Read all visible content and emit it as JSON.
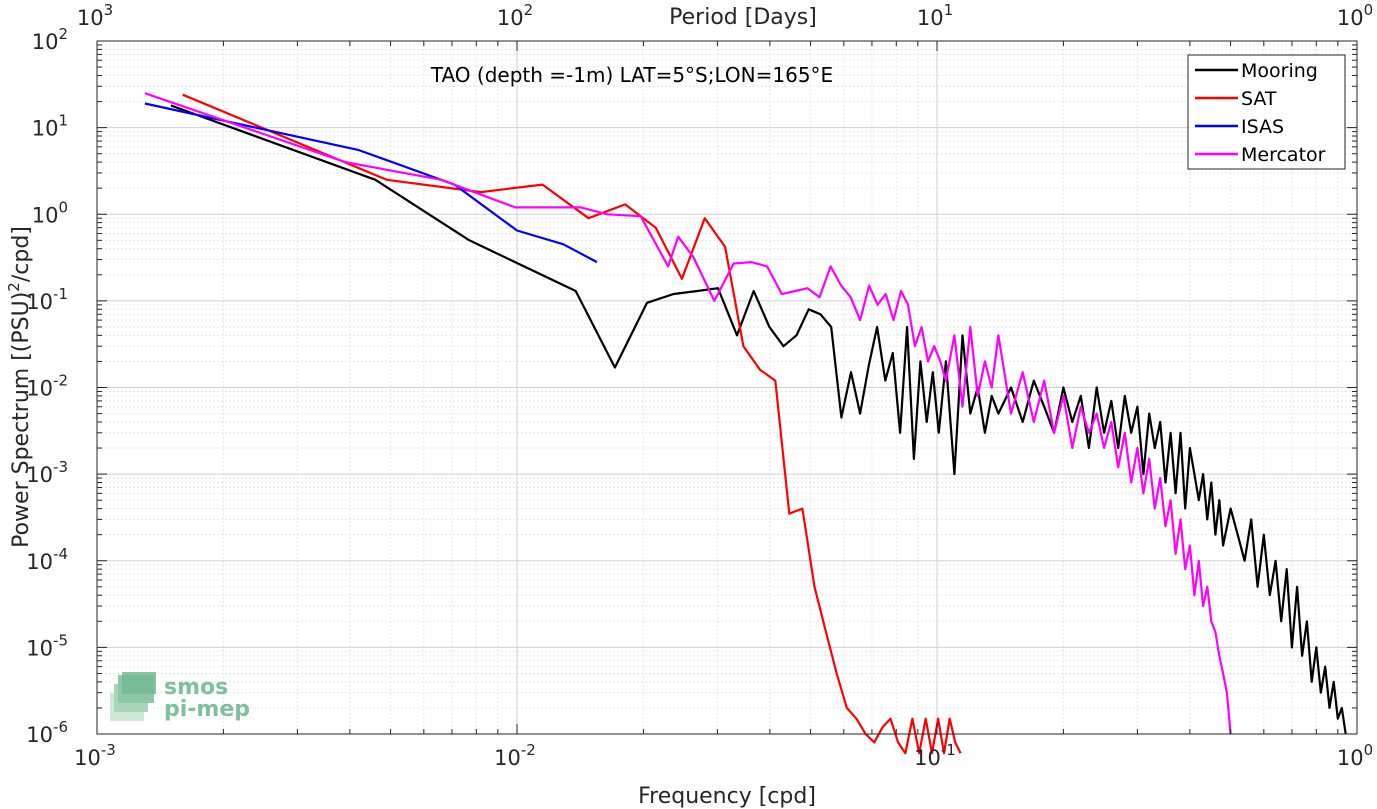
{
  "chart_data": {
    "type": "line",
    "title": "TAO (depth =-1m) LAT=5°S;LON=165°E",
    "xlabel": "Frequency [cpd]",
    "ylabel": "Power Spectrum [(PSU)",
    "ylabel_sup": "2",
    "ylabel_tail": "/cpd]",
    "top_xlabel": "Period [Days]",
    "xscale": "log",
    "yscale": "log",
    "xlim": [
      0.001,
      1
    ],
    "ylim": [
      1e-06,
      100
    ],
    "grid": true,
    "legend_position": "top-right",
    "x_ticks": [
      {
        "value": 0.001,
        "base": "10",
        "exp": "-3"
      },
      {
        "value": 0.01,
        "base": "10",
        "exp": "-2"
      },
      {
        "value": 0.1,
        "base": "10",
        "exp": "-1"
      },
      {
        "value": 1,
        "base": "10",
        "exp": "0"
      }
    ],
    "y_ticks": [
      {
        "value": 1e-06,
        "base": "10",
        "exp": "-6"
      },
      {
        "value": 1e-05,
        "base": "10",
        "exp": "-5"
      },
      {
        "value": 0.0001,
        "base": "10",
        "exp": "-4"
      },
      {
        "value": 0.001,
        "base": "10",
        "exp": "-3"
      },
      {
        "value": 0.01,
        "base": "10",
        "exp": "-2"
      },
      {
        "value": 0.1,
        "base": "10",
        "exp": "-1"
      },
      {
        "value": 1,
        "base": "10",
        "exp": "0"
      },
      {
        "value": 10,
        "base": "10",
        "exp": "1"
      },
      {
        "value": 100,
        "base": "10",
        "exp": "2"
      }
    ],
    "top_ticks": [
      {
        "value": 0.001,
        "base": "10",
        "exp": "3"
      },
      {
        "value": 0.01,
        "base": "10",
        "exp": "2"
      },
      {
        "value": 0.1,
        "base": "10",
        "exp": "1"
      },
      {
        "value": 1,
        "base": "10",
        "exp": "0"
      }
    ],
    "series": [
      {
        "name": "Mooring",
        "color": "#000000",
        "x": [
          0.0015,
          0.0046,
          0.0077,
          0.0138,
          0.0171,
          0.0204,
          0.0236,
          0.0269,
          0.0301,
          0.0334,
          0.0366,
          0.0399,
          0.0431,
          0.0463,
          0.0495,
          0.0528,
          0.056,
          0.0592,
          0.0624,
          0.0656,
          0.0688,
          0.072,
          0.0753,
          0.0785,
          0.0817,
          0.0849,
          0.0881,
          0.0913,
          0.0945,
          0.0977,
          0.101,
          0.105,
          0.11,
          0.115,
          0.12,
          0.125,
          0.13,
          0.135,
          0.14,
          0.15,
          0.16,
          0.17,
          0.18,
          0.19,
          0.2,
          0.21,
          0.22,
          0.23,
          0.24,
          0.25,
          0.26,
          0.27,
          0.28,
          0.29,
          0.3,
          0.31,
          0.32,
          0.33,
          0.34,
          0.35,
          0.36,
          0.37,
          0.38,
          0.39,
          0.4,
          0.41,
          0.42,
          0.43,
          0.44,
          0.45,
          0.46,
          0.47,
          0.48,
          0.5,
          0.52,
          0.54,
          0.56,
          0.58,
          0.6,
          0.62,
          0.64,
          0.66,
          0.68,
          0.7,
          0.72,
          0.74,
          0.76,
          0.78,
          0.8,
          0.82,
          0.84,
          0.86,
          0.88,
          0.9,
          0.92,
          0.94
        ],
        "values": [
          18,
          2.5,
          0.5,
          0.13,
          0.017,
          0.095,
          0.12,
          0.13,
          0.14,
          0.04,
          0.13,
          0.05,
          0.03,
          0.04,
          0.08,
          0.07,
          0.05,
          0.0045,
          0.015,
          0.005,
          0.018,
          0.05,
          0.012,
          0.025,
          0.003,
          0.05,
          0.0015,
          0.02,
          0.004,
          0.015,
          0.003,
          0.02,
          0.001,
          0.04,
          0.005,
          0.01,
          0.003,
          0.008,
          0.005,
          0.01,
          0.004,
          0.012,
          0.006,
          0.003,
          0.01,
          0.004,
          0.008,
          0.002,
          0.01,
          0.003,
          0.007,
          0.002,
          0.008,
          0.003,
          0.006,
          0.001,
          0.005,
          0.002,
          0.004,
          0.0008,
          0.003,
          0.0006,
          0.003,
          0.0004,
          0.002,
          0.001,
          0.0005,
          0.001,
          0.0003,
          0.0008,
          0.0002,
          0.0005,
          0.00015,
          0.0004,
          0.0002,
          0.0001,
          0.0003,
          5e-05,
          0.0002,
          4e-05,
          0.0001,
          2e-05,
          8e-05,
          1e-05,
          5e-05,
          8e-06,
          2e-05,
          4e-06,
          1e-05,
          3e-06,
          6e-06,
          2e-06,
          4e-06,
          1.5e-06,
          2e-06,
          1e-06
        ]
      },
      {
        "name": "SAT",
        "color": "#ff0000",
        "x": [
          0.0016,
          0.0049,
          0.0082,
          0.0115,
          0.0148,
          0.0181,
          0.0214,
          0.0247,
          0.028,
          0.0313,
          0.0346,
          0.0379,
          0.0412,
          0.0445,
          0.0478,
          0.0511,
          0.0544,
          0.0577,
          0.061,
          0.0643,
          0.0676,
          0.0709,
          0.0742,
          0.0775,
          0.0808,
          0.0841,
          0.0874,
          0.0907,
          0.094,
          0.0973,
          0.1006,
          0.1039,
          0.1072,
          0.1105,
          0.1138
        ],
        "values": [
          24,
          2.5,
          1.8,
          2.2,
          0.9,
          1.3,
          0.7,
          0.18,
          0.9,
          0.42,
          0.03,
          0.016,
          0.012,
          0.00035,
          0.0004,
          5e-05,
          1.5e-05,
          5e-06,
          2e-06,
          1.5e-06,
          1e-06,
          8e-07,
          1.2e-06,
          1.5e-06,
          8e-07,
          6e-07,
          1.5e-06,
          6e-07,
          1.5e-06,
          6e-07,
          1.5e-06,
          6e-07,
          1.5e-06,
          8e-07,
          6e-07
        ]
      },
      {
        "name": "ISAS",
        "color": "#0000ff",
        "x": [
          0.0013,
          0.0042,
          0.0071,
          0.01,
          0.0129,
          0.0155
        ],
        "values": [
          19,
          5.5,
          2.2,
          0.65,
          0.45,
          0.28
        ]
      },
      {
        "name": "Mercator",
        "color": "#ff00ff",
        "x": [
          0.0013,
          0.0039,
          0.0066,
          0.0099,
          0.0142,
          0.0164,
          0.0197,
          0.0229,
          0.0242,
          0.0263,
          0.0295,
          0.0328,
          0.0361,
          0.0394,
          0.0427,
          0.046,
          0.0492,
          0.0525,
          0.0558,
          0.0591,
          0.0623,
          0.0656,
          0.0689,
          0.0722,
          0.0755,
          0.0788,
          0.0821,
          0.0853,
          0.0886,
          0.0919,
          0.0952,
          0.0985,
          0.1018,
          0.105,
          0.11,
          0.115,
          0.12,
          0.125,
          0.13,
          0.135,
          0.14,
          0.15,
          0.16,
          0.17,
          0.18,
          0.19,
          0.2,
          0.21,
          0.22,
          0.23,
          0.24,
          0.25,
          0.26,
          0.27,
          0.28,
          0.29,
          0.3,
          0.31,
          0.32,
          0.33,
          0.34,
          0.35,
          0.36,
          0.37,
          0.38,
          0.39,
          0.4,
          0.41,
          0.42,
          0.43,
          0.44,
          0.45,
          0.46,
          0.47,
          0.48,
          0.49,
          0.5
        ],
        "values": [
          25,
          4,
          2.5,
          1.2,
          1.2,
          1,
          0.95,
          0.25,
          0.55,
          0.32,
          0.1,
          0.27,
          0.28,
          0.25,
          0.12,
          0.13,
          0.14,
          0.11,
          0.25,
          0.15,
          0.11,
          0.06,
          0.15,
          0.09,
          0.12,
          0.06,
          0.13,
          0.09,
          0.03,
          0.05,
          0.02,
          0.03,
          0.02,
          0.012,
          0.04,
          0.006,
          0.05,
          0.008,
          0.02,
          0.01,
          0.04,
          0.005,
          0.015,
          0.004,
          0.012,
          0.003,
          0.008,
          0.002,
          0.006,
          0.003,
          0.005,
          0.002,
          0.004,
          0.0012,
          0.003,
          0.0008,
          0.002,
          0.0006,
          0.0015,
          0.0004,
          0.0009,
          0.00025,
          0.0005,
          0.00012,
          0.0003,
          8e-05,
          0.00015,
          4e-05,
          0.0001,
          3e-05,
          5e-05,
          2e-05,
          1.5e-05,
          8e-06,
          5e-06,
          3e-06,
          1e-06
        ]
      }
    ],
    "logo": {
      "line1": "smos",
      "line2": "pi-mep"
    }
  }
}
